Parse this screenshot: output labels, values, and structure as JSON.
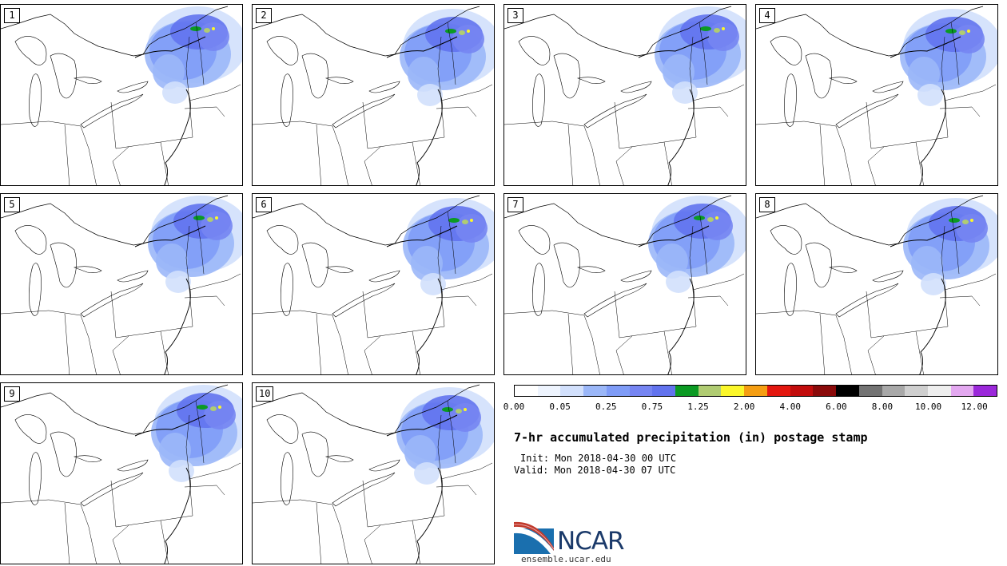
{
  "panels": [
    {
      "label": "1"
    },
    {
      "label": "2"
    },
    {
      "label": "3"
    },
    {
      "label": "4"
    },
    {
      "label": "5"
    },
    {
      "label": "6"
    },
    {
      "label": "7"
    },
    {
      "label": "8"
    },
    {
      "label": "9"
    },
    {
      "label": "10"
    }
  ],
  "colorbar": {
    "colors": [
      "#ffffff",
      "#eef4fe",
      "#d2e0fc",
      "#9bb7f8",
      "#7f9cf7",
      "#7685f2",
      "#6273ee",
      "#0b9a23",
      "#b0cc72",
      "#fbf72a",
      "#f59e12",
      "#e3170f",
      "#c20c0c",
      "#8a0a0a",
      "#000000",
      "#737373",
      "#a8a8a8",
      "#cfcfcf",
      "#eeeeee",
      "#e3a8f0",
      "#9b28da"
    ],
    "tick_labels": [
      "0.00",
      "0.05",
      "0.25",
      "0.75",
      "1.25",
      "2.00",
      "4.00",
      "6.00",
      "8.00",
      "10.00",
      "12.00"
    ]
  },
  "title": "7-hr accumulated precipitation (in) postage stamp",
  "init": "Init: Mon 2018-04-30 00 UTC",
  "valid": "Valid: Mon 2018-04-30 07 UTC",
  "logo_icon": "ncar-logo-icon",
  "logo_text": "NCAR",
  "url": "ensemble.ucar.edu"
}
